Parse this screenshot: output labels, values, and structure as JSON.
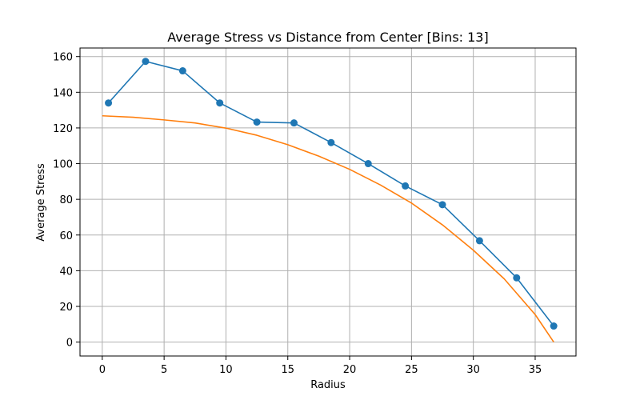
{
  "chart_data": {
    "type": "line",
    "title": "Average Stress vs Distance from Center [Bins: 13]",
    "xlabel": "Radius",
    "ylabel": "Average Stress",
    "xlim": [
      -1.8,
      38.3
    ],
    "ylim": [
      -7.8,
      164.8
    ],
    "xticks": [
      0,
      5,
      10,
      15,
      20,
      25,
      30,
      35
    ],
    "yticks": [
      0,
      20,
      40,
      60,
      80,
      100,
      120,
      140,
      160
    ],
    "grid": true,
    "legend": "none",
    "series": [
      {
        "color": "#1f77b4",
        "marker": "circle",
        "x": [
          0.5,
          3.5,
          6.5,
          9.5,
          12.5,
          15.5,
          18.5,
          21.5,
          24.5,
          27.5,
          30.5,
          33.5,
          36.5
        ],
        "y": [
          134,
          157.3,
          152,
          134,
          123.3,
          122.8,
          111.8,
          100,
          87.5,
          77,
          56.8,
          36,
          9
        ]
      },
      {
        "color": "#ff7f0e",
        "marker": "none",
        "x": [
          0,
          2.5,
          5,
          7.5,
          10,
          12.5,
          15,
          17.5,
          20,
          22.5,
          25,
          27.5,
          30,
          32.5,
          35,
          36.5
        ],
        "y": [
          126.8,
          126.0,
          124.5,
          122.8,
          119.9,
          115.9,
          110.6,
          104.2,
          96.8,
          88.0,
          77.9,
          65.7,
          51.5,
          35.4,
          15.4,
          0
        ]
      }
    ]
  }
}
